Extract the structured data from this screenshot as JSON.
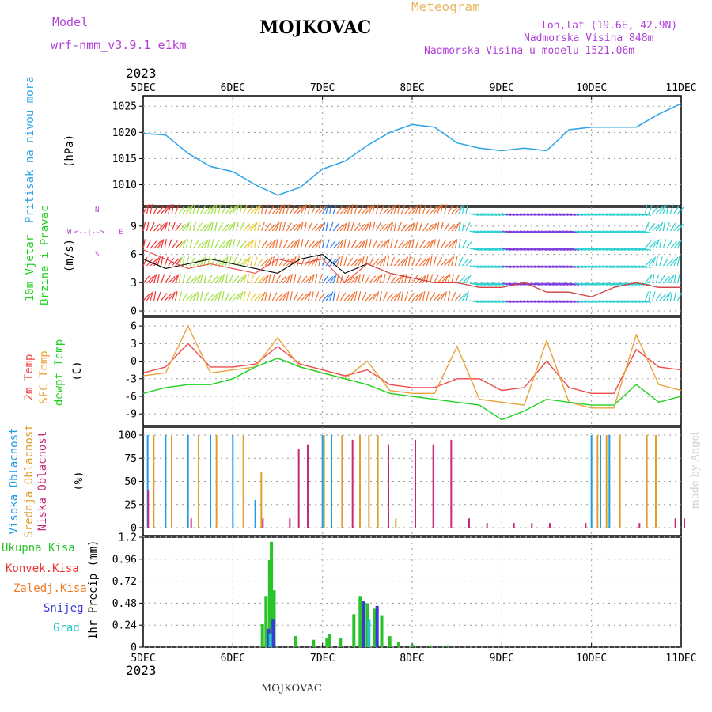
{
  "header": {
    "model_label": "Model",
    "model_name": "wrf-nmm_v3.9.1 e1km",
    "station": "MOJKOVAC",
    "meteogram": "Meteogram",
    "lonlat": "lon,lat (19.6E, 42.9N)",
    "altitude": "Nadmorska Visina 848m",
    "model_altitude": "Nadmorska Visina u modelu 1521.06m"
  },
  "footer": {
    "station": "MOJKOVAC"
  },
  "watermark": "made by Angel",
  "time_axis": {
    "year": "2023",
    "labels": [
      "5DEC",
      "6DEC",
      "7DEC",
      "8DEC",
      "9DEC",
      "10DEC",
      "11DEC"
    ]
  },
  "legends": {
    "pressure": {
      "title": "Pritisak na nivou mora",
      "unit": "(hPa)"
    },
    "wind": {
      "title1": "10m Vjetar",
      "title2": "Brzina i Pravac",
      "unit": "(m/s)",
      "compass_w": "W",
      "compass_e": "E",
      "compass_n": "N",
      "compass_s": "S"
    },
    "temp": {
      "t2m": "2m Temp",
      "sfc": "SFC Temp",
      "dew": "dewpt Temp",
      "unit": "(C)"
    },
    "cloud": {
      "high": "Visoka Oblacnost",
      "mid": "Srednja Oblacnost",
      "low": "Niska Oblacnost",
      "unit": "(%)"
    },
    "precip": {
      "total": "Ukupna Kisa",
      "conv": "Konvek.Kisa",
      "frz": "Zaledj.Kisa",
      "snow": "Snijeg",
      "hail": "Grad",
      "unit": "1hr Precip (mm)"
    }
  },
  "colors": {
    "pressure": "#29a3e6",
    "t2m": "#f04a4a",
    "sfc": "#e8a33c",
    "dew": "#1fd11f",
    "high_cloud": "#1f9be8",
    "mid_cloud": "#e0a030",
    "low_cloud": "#c8287a",
    "total_precip": "#2ac42a",
    "conv_precip": "#ee3333",
    "frz_precip": "#f07a28",
    "snow": "#3a3ad8",
    "hail": "#23c4c4",
    "header_purple": "#b040d8",
    "header_orange": "#e8b860"
  },
  "chart_data": [
    {
      "type": "line",
      "panel": "pressure",
      "ylim": [
        1006,
        1027
      ],
      "yticks": [
        1010,
        1015,
        1020,
        1025
      ],
      "x_days": [
        0,
        0.25,
        0.5,
        0.75,
        1.0,
        1.25,
        1.5,
        1.75,
        2.0,
        2.25,
        2.5,
        2.75,
        3.0,
        3.25,
        3.5,
        3.75,
        4.0,
        4.25,
        4.5,
        4.75,
        5.0,
        5.25,
        5.5,
        5.75,
        6.0
      ],
      "series": [
        {
          "values": [
            1019.8,
            1019.5,
            1016.0,
            1013.5,
            1012.5,
            1010.0,
            1008.0,
            1009.5,
            1013.0,
            1014.5,
            1017.5,
            1020.0,
            1021.5,
            1021.0,
            1018.0,
            1017.0,
            1016.5,
            1017.0,
            1016.5,
            1020.5,
            1021.0,
            1021.0,
            1021.0,
            1023.5,
            1025.5
          ]
        }
      ]
    },
    {
      "type": "line",
      "panel": "wind",
      "ylim": [
        -0.5,
        11
      ],
      "yticks": [
        0,
        3,
        6,
        9
      ],
      "x_days": [
        0,
        0.25,
        0.5,
        0.75,
        1.0,
        1.25,
        1.5,
        1.75,
        2.0,
        2.25,
        2.5,
        2.75,
        3.0,
        3.25,
        3.5,
        3.75,
        4.0,
        4.25,
        4.5,
        4.75,
        5.0,
        5.25,
        5.5,
        5.75,
        6.0
      ],
      "series": [
        {
          "values": [
            5.5,
            4.5,
            5.0,
            5.5,
            5.0,
            4.5,
            4.0,
            5.5,
            6.0,
            4.0,
            5.0,
            4.0,
            3.5,
            3.0,
            3.0,
            2.5,
            2.5,
            3.0,
            2.0,
            2.0,
            1.5,
            2.5,
            3.0,
            2.5,
            2.5
          ]
        },
        {
          "values": [
            6.5,
            5.5,
            4.5,
            5.0,
            4.5,
            4.0,
            5.5,
            5.0,
            5.5,
            3.0,
            5.0,
            4.0,
            3.5,
            3.0,
            3.0,
            2.5,
            2.5,
            3.0,
            2.0,
            2.0,
            1.5,
            2.5,
            3.0,
            2.5,
            2.5
          ]
        }
      ]
    },
    {
      "type": "line",
      "panel": "temperature",
      "ylim": [
        -11,
        7.5
      ],
      "yticks": [
        -9,
        -6,
        -3,
        0,
        3,
        6
      ],
      "x_days": [
        0,
        0.25,
        0.5,
        0.75,
        1.0,
        1.25,
        1.5,
        1.75,
        2.0,
        2.25,
        2.5,
        2.75,
        3.0,
        3.25,
        3.5,
        3.75,
        4.0,
        4.25,
        4.5,
        4.75,
        5.0,
        5.25,
        5.5,
        5.75,
        6.0
      ],
      "series": [
        {
          "name": "2m Temp",
          "values": [
            -2.0,
            -1.0,
            3.0,
            -1.0,
            -1.0,
            -0.5,
            2.5,
            -0.5,
            -1.5,
            -2.5,
            -1.5,
            -4.0,
            -4.5,
            -4.5,
            -3.0,
            -3.0,
            -5.0,
            -4.5,
            0.0,
            -4.5,
            -5.5,
            -5.5,
            2.0,
            -1.0,
            -1.5
          ]
        },
        {
          "name": "SFC Temp",
          "values": [
            -2.5,
            -2.0,
            6.0,
            -2.0,
            -1.5,
            -1.0,
            4.0,
            -1.0,
            -2.0,
            -3.0,
            0.0,
            -5.0,
            -5.5,
            -5.5,
            2.5,
            -6.5,
            -7.0,
            -7.5,
            3.5,
            -7.0,
            -8.0,
            -8.0,
            4.5,
            -4.0,
            -5.0
          ]
        },
        {
          "name": "dewpt Temp",
          "values": [
            -5.5,
            -4.5,
            -4.0,
            -4.0,
            -3.0,
            -1.0,
            0.5,
            -1.0,
            -2.0,
            -3.0,
            -4.0,
            -5.5,
            -6.0,
            -6.5,
            -7.0,
            -7.5,
            -10.0,
            -8.5,
            -6.5,
            -7.0,
            -7.5,
            -7.5,
            -4.0,
            -7.0,
            -6.0
          ]
        }
      ]
    },
    {
      "type": "bar",
      "panel": "cloud cover",
      "ylim": [
        0,
        100
      ],
      "yticks": [
        0,
        25,
        50,
        75,
        100
      ],
      "series": [
        {
          "name": "Visoka Oblacnost",
          "x_days": [
            0.05,
            0.25,
            0.5,
            0.75,
            1.0,
            1.25,
            2.0,
            2.1,
            5.0,
            5.1,
            5.2
          ],
          "values": [
            100,
            100,
            100,
            100,
            100,
            30,
            100,
            100,
            100,
            100,
            100
          ]
        },
        {
          "name": "Srednja Oblacnost",
          "x_days": [
            0.1,
            0.3,
            0.6,
            0.8,
            1.1,
            1.3,
            2.0,
            2.2,
            2.4,
            2.5,
            2.6,
            2.8,
            5.05,
            5.15,
            5.3,
            5.6,
            5.7
          ],
          "values": [
            100,
            100,
            100,
            100,
            100,
            60,
            100,
            100,
            100,
            100,
            100,
            10,
            100,
            100,
            100,
            100,
            100
          ]
        },
        {
          "name": "Niska Oblacnost",
          "x_days": [
            0.02,
            0.5,
            1.3,
            1.6,
            1.7,
            1.8,
            2.3,
            2.7,
            3.0,
            3.2,
            3.4,
            3.6,
            3.8,
            4.1,
            4.3,
            4.5,
            4.9,
            5.5,
            5.9,
            6.0
          ],
          "values": [
            40,
            10,
            10,
            10,
            85,
            90,
            95,
            90,
            95,
            90,
            95,
            10,
            5,
            5,
            5,
            5,
            5,
            5,
            10,
            10
          ]
        }
      ]
    },
    {
      "type": "bar",
      "panel": "precipitation",
      "ylim": [
        0,
        1.2
      ],
      "yticks": [
        0,
        0.24,
        0.48,
        0.72,
        0.96,
        1.2
      ],
      "series": [
        {
          "name": "Ukupna Kisa",
          "x_days": [
            1.33,
            1.37,
            1.41,
            1.43,
            1.46,
            1.7,
            1.9,
            2.05,
            2.08,
            2.2,
            2.35,
            2.42,
            2.5,
            2.58,
            2.66,
            2.75,
            2.85,
            3.0,
            3.2,
            3.4
          ],
          "values": [
            0.25,
            0.55,
            0.95,
            1.15,
            0.62,
            0.12,
            0.08,
            0.1,
            0.14,
            0.1,
            0.36,
            0.55,
            0.48,
            0.42,
            0.34,
            0.12,
            0.06,
            0.03,
            0.02,
            0.02
          ]
        },
        {
          "name": "Snijeg",
          "x_days": [
            1.39,
            1.44,
            2.45,
            2.6
          ],
          "values": [
            0.2,
            0.3,
            0.5,
            0.45
          ]
        },
        {
          "name": "Grad",
          "x_days": [
            1.4,
            2.5
          ],
          "values": [
            0.15,
            0.3
          ]
        }
      ]
    }
  ]
}
